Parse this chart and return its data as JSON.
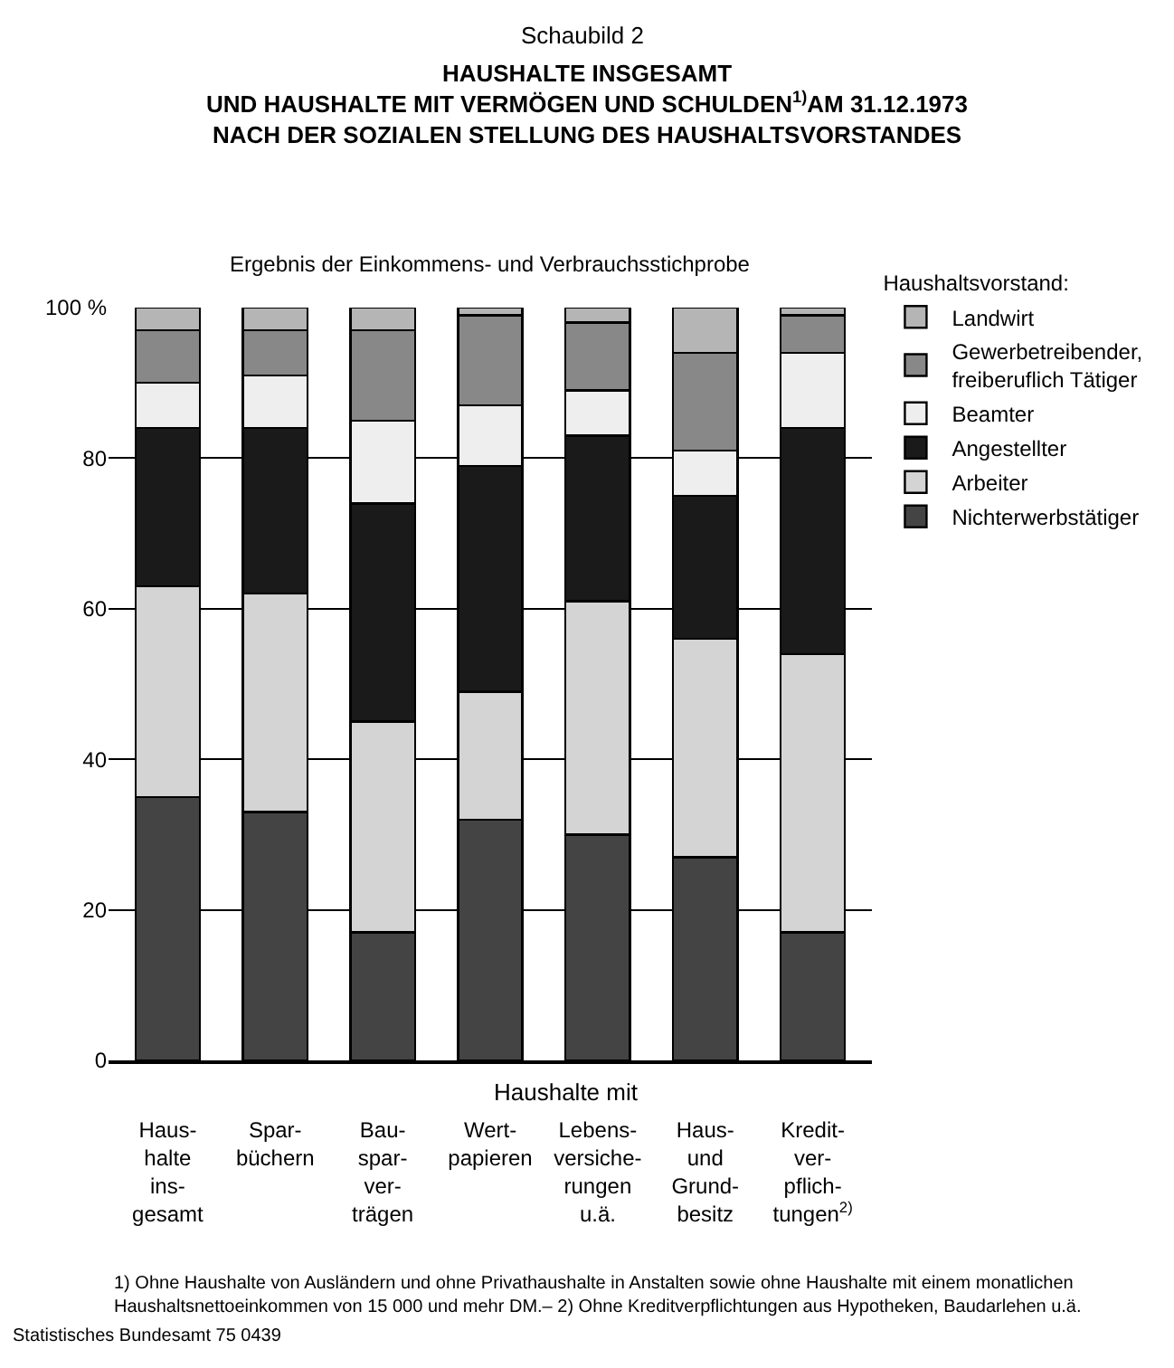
{
  "chart_data": {
    "type": "bar",
    "stacked": true,
    "title": "HAUSHALTE INSGESAMT\nUND HAUSHALTE MIT VERMÖGEN UND SCHULDEN$^{1)}$AM 31.12.1973\nNACH DER SOZIALEN STELLUNG DES HAUSHALTSVORSTANDES",
    "subtitle": "Ergebnis der Einkommens- und Verbrauchsstichprobe",
    "legend_title": "Haushaltsvorstand:",
    "categories": [
      "Haus-\nhalte\nins-\ngesamt",
      "Spar-\nbüchern",
      "Bau-\nspar-\nver-\nträgen",
      "Wert-\npapieren",
      "Lebens-\nversiche-\nrungen\nu.ä.",
      "Haus-\nund\nGrund-\nbesitz",
      "Kredit-\nver-\npflich-\ntungen$^{2)}$"
    ],
    "series": [
      {
        "name": "Nichterwerbstätiger",
        "color": "#444444",
        "values": [
          35,
          33,
          17,
          32,
          30,
          27,
          17
        ]
      },
      {
        "name": "Arbeiter",
        "color": "#d4d4d4",
        "values": [
          28,
          29,
          28,
          17,
          31,
          29,
          37
        ]
      },
      {
        "name": "Angestellter",
        "color": "#1a1a1a",
        "values": [
          21,
          22,
          29,
          30,
          22,
          19,
          30
        ]
      },
      {
        "name": "Beamter",
        "color": "#eeeeee",
        "values": [
          6,
          7,
          11,
          8,
          6,
          6,
          10
        ]
      },
      {
        "name": "Gewerbetreibender,\nfreiberuflich Tätiger",
        "color": "#888888",
        "values": [
          7,
          6,
          12,
          12,
          9,
          13,
          5
        ]
      },
      {
        "name": "Landwirt",
        "color": "#b5b5b5",
        "values": [
          3,
          3,
          3,
          1,
          2,
          6,
          1
        ]
      }
    ],
    "ylim": [
      0,
      100
    ],
    "yticks": [
      0,
      20,
      40,
      60,
      80,
      {
        "value": 100,
        "label": "100 %"
      }
    ],
    "grid": "y",
    "legend": "right",
    "annotations": [
      "Schaubild 2",
      "Haushalte mit",
      "1) Ohne Haushalte von Ausländern und ohne Privathaushalte in Anstalten sowie ohne Haushalte mit einem monatlichen\nHaushaltsnettoeinkommen von 15 000 und mehr DM.– 2) Ohne Kreditverpflichtungen aus Hypotheken, Baudarlehen u.ä.",
      "Statistisches Bundesamt 75 0439"
    ]
  }
}
